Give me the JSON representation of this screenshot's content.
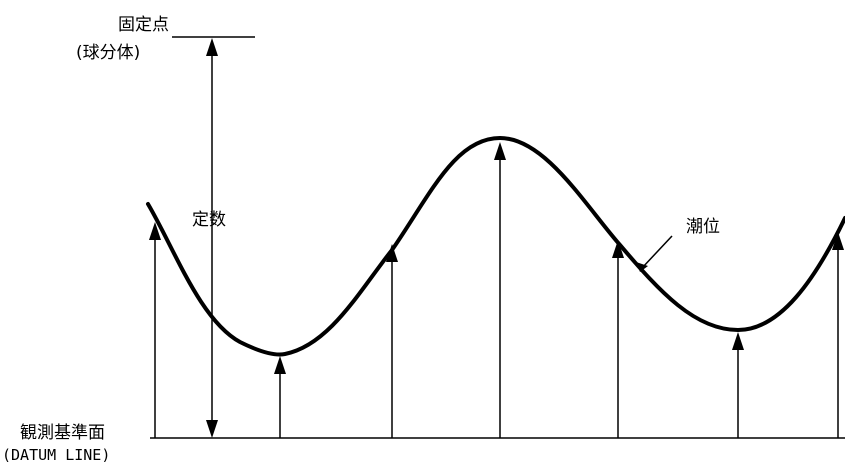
{
  "diagram": {
    "fixed_point_label": "固定点",
    "fixed_point_sub": "(球分体)",
    "constant_label": "定数",
    "tide_label": "潮位",
    "datum_label": "観測基準面",
    "datum_sub": "(DATUM LINE)",
    "colors": {
      "ink": "#000000",
      "background": "#ffffff"
    }
  }
}
